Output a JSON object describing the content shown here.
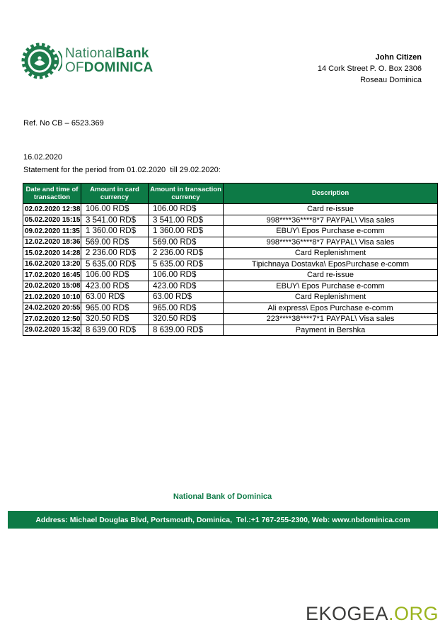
{
  "colors": {
    "brand_green": "#0d7a46",
    "logo_green": "#1e7b4c",
    "logo_green_light": "#35835c",
    "watermark_dark": "#3b3b3a",
    "watermark_green": "#9ab41d"
  },
  "header": {
    "logo": {
      "word1": "National",
      "word2": "Bank",
      "word3": "OF",
      "word4": "DOMINICA"
    },
    "recipient": {
      "name": "John Citizen",
      "address_line1": "14 Cork Street P. O. Box 2306",
      "address_line2": "Roseau Dominica"
    },
    "ref_no": "Ref. No CB – 6523.369",
    "ref_date": "16.02.2020"
  },
  "statement": {
    "title": "Statement for the period from 01.02.2020  till 29.02.2020:"
  },
  "table": {
    "headers": [
      "Date and time of transaction",
      "Amount in card currency",
      "Amount in transaction currency",
      "Description"
    ],
    "rows": [
      [
        "02.02.2020 12:38",
        "106.00 RD$",
        "106.00 RD$",
        "Card re-issue"
      ],
      [
        "05.02.2020 15:15",
        "3 541.00 RD$",
        "3 541.00 RD$",
        "998****36****8*7 PAYPAL\\ Visa sales"
      ],
      [
        "09.02.2020 11:35",
        "1 360.00 RD$",
        "1 360.00 RD$",
        "EBUY\\ Epos Purchase e-comm"
      ],
      [
        "12.02.2020 18:36",
        "569.00 RD$",
        "569.00 RD$",
        "998****36****8*7 PAYPAL\\ Visa sales"
      ],
      [
        "15.02.2020 14:28",
        "2 236.00 RD$",
        "2 236.00 RD$",
        "Card Replenishment"
      ],
      [
        "16.02.2020 13:20",
        "5 635.00 RD$",
        "5 635.00 RD$",
        "Tipichnaya Dostavka\\ EposPurchase e-comm"
      ],
      [
        "17.02.2020 16:45",
        "106.00 RD$",
        "106.00 RD$",
        "Card re-issue"
      ],
      [
        "20.02.2020 15:08",
        "423.00 RD$",
        "423.00 RD$",
        "EBUY\\ Epos Purchase e-comm"
      ],
      [
        "21.02.2020 10:10",
        "63.00 RD$",
        "63.00 RD$",
        "Card Replenishment"
      ],
      [
        "24.02.2020 20:55",
        "965.00 RD$",
        "965.00 RD$",
        "Ali express\\ Epos Purchase e-comm"
      ],
      [
        "27.02.2020 12:50",
        "320.50 RD$",
        "320.50 RD$",
        "223****38****7*1 PAYPAL\\ Visa sales"
      ],
      [
        "29.02.2020 15:32",
        "8 639.00 RD$",
        "8 639.00 RD$",
        "Payment in Bershka"
      ]
    ]
  },
  "footer": {
    "bank_name": "National Bank of Dominica",
    "address_bar": "Address: Michael Douglas Blvd, Portsmouth, Dominica,  Tel.:+1 767-255-2300, Web: www.nbdominica.com"
  },
  "watermark": {
    "brand": "EKOGEA",
    "tld": ".ORG"
  }
}
